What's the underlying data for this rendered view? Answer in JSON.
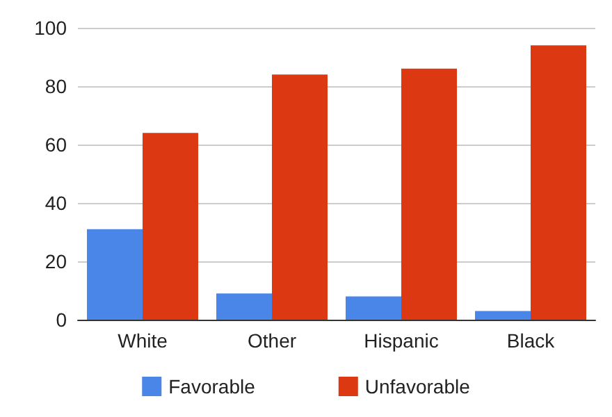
{
  "chart_data": {
    "type": "bar",
    "categories": [
      "White",
      "Other",
      "Hispanic",
      "Black"
    ],
    "series": [
      {
        "name": "Favorable",
        "color": "#4a86e8",
        "values": [
          31,
          9,
          8,
          3
        ]
      },
      {
        "name": "Unfavorable",
        "color": "#dc3912",
        "values": [
          64,
          84,
          86,
          94
        ]
      }
    ],
    "ylim": [
      0,
      100
    ],
    "yticks": [
      0,
      20,
      40,
      60,
      80,
      100
    ],
    "grid": "y",
    "legend": "bottom"
  }
}
